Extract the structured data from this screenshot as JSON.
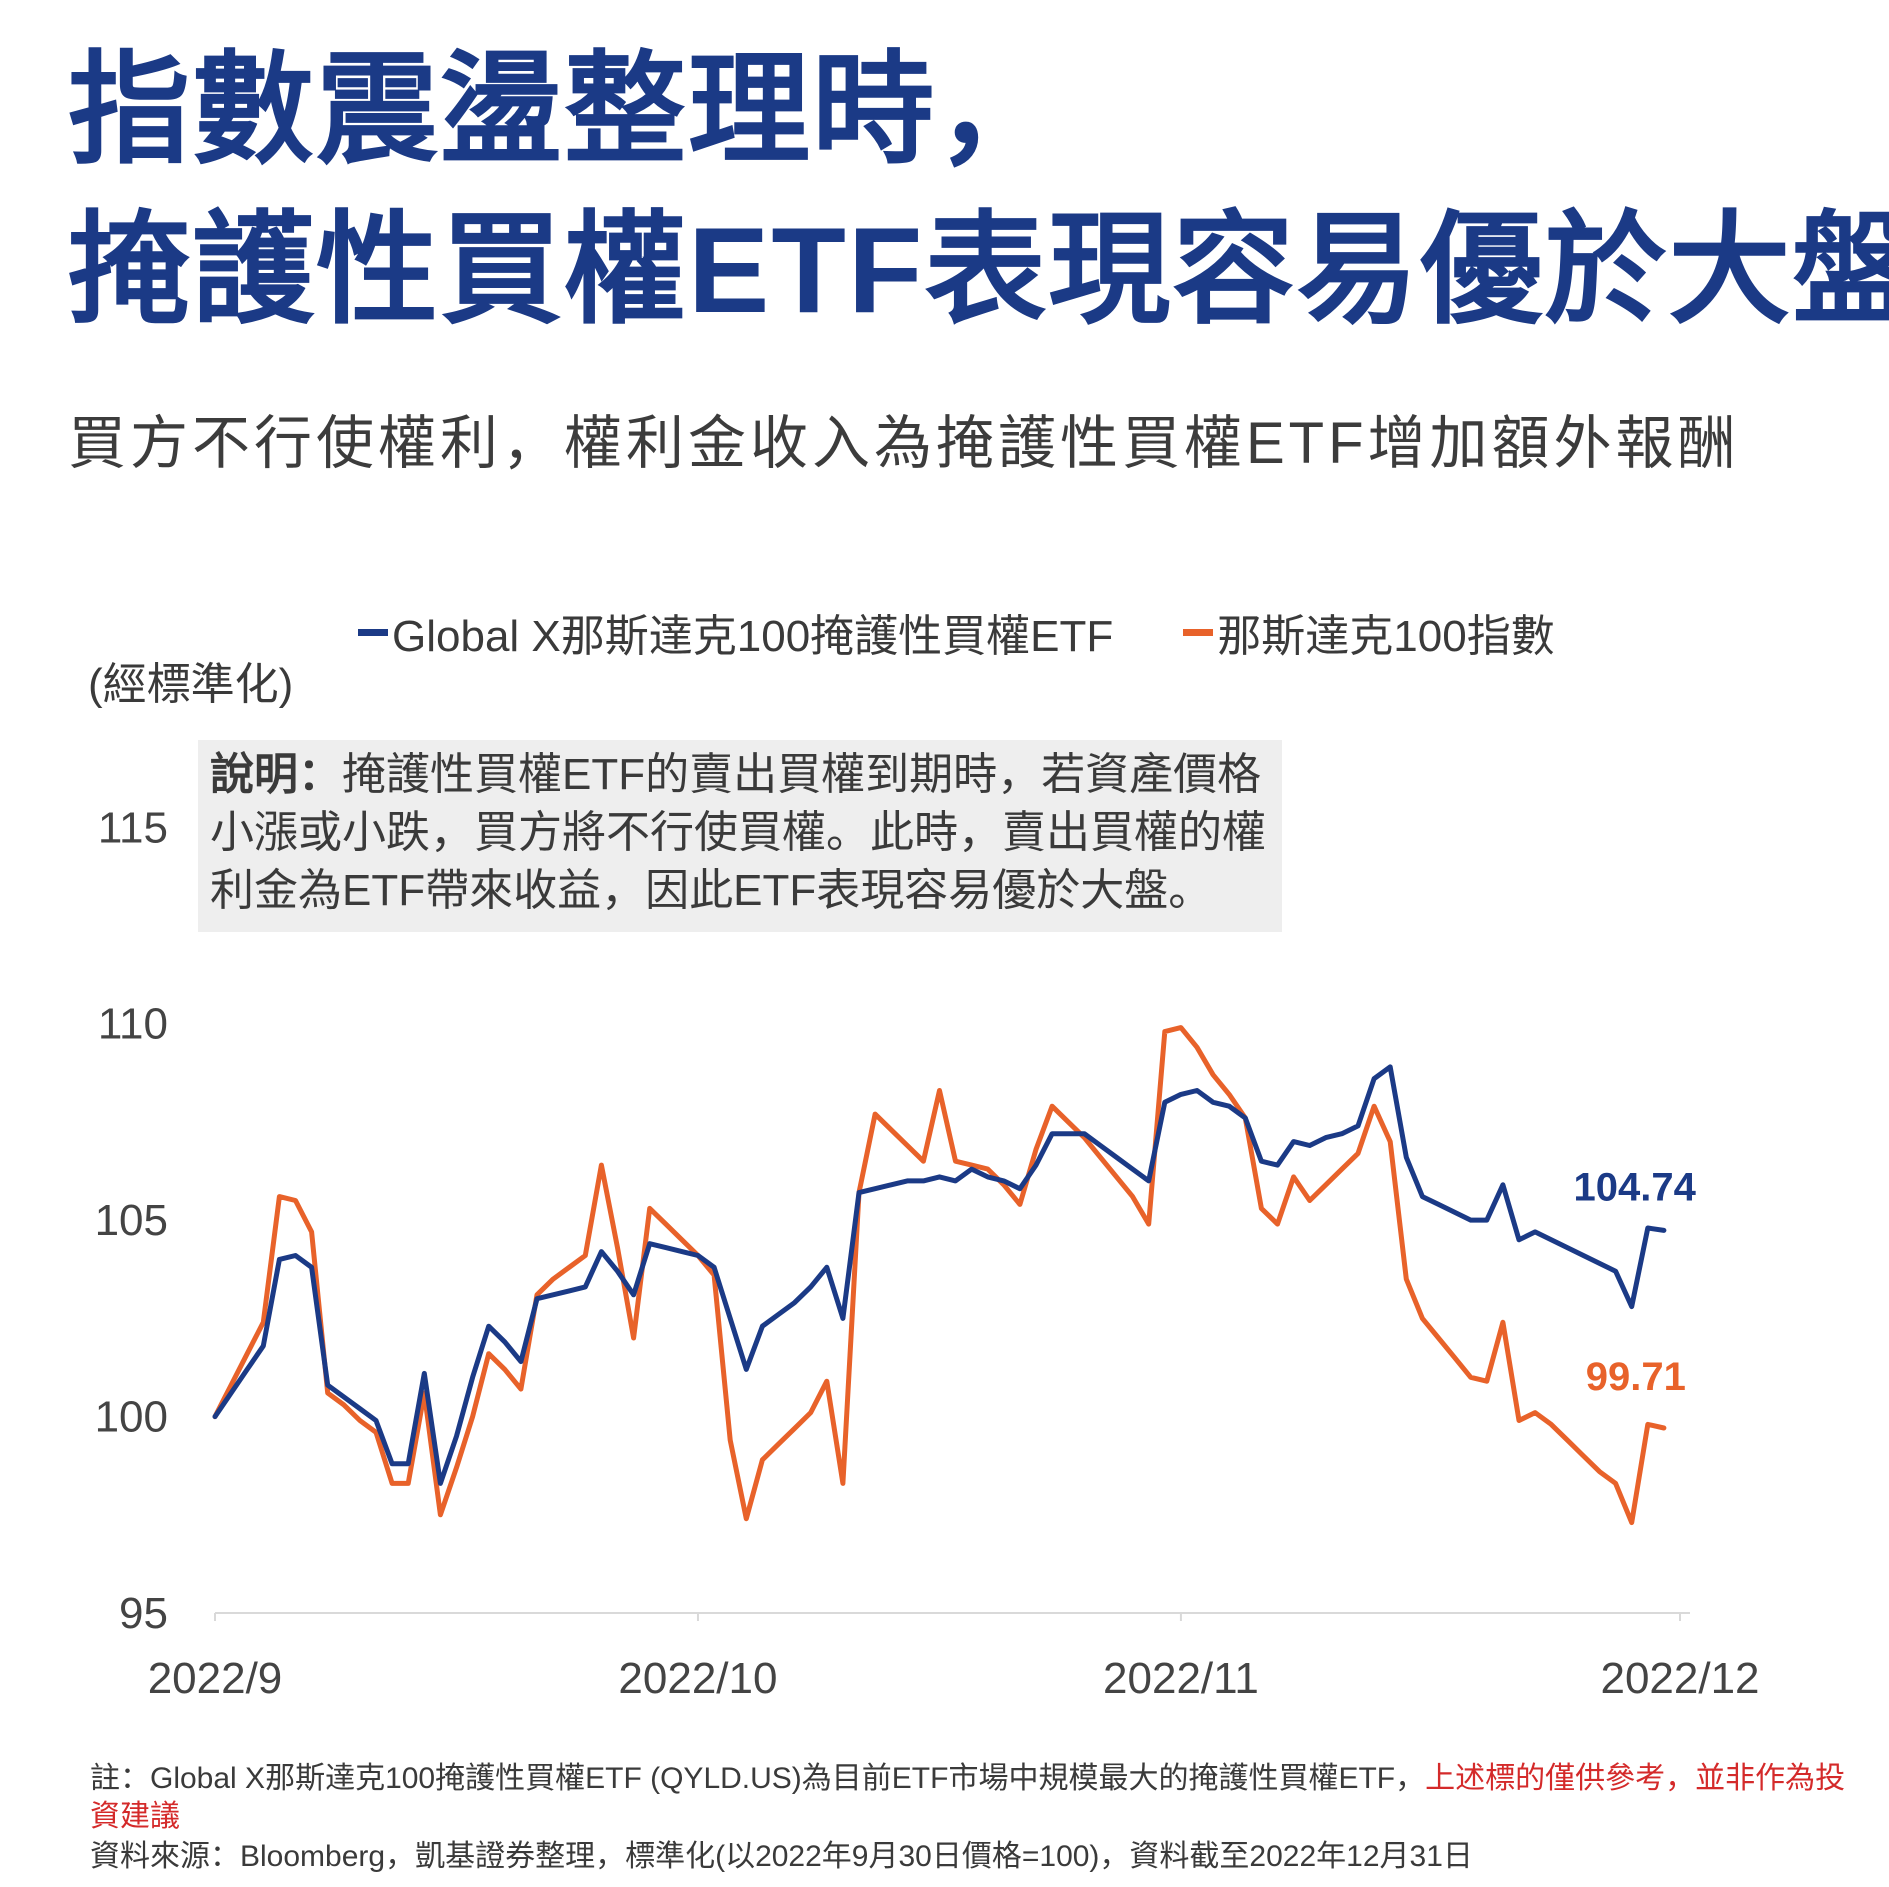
{
  "title": {
    "line1": "指數震盪整理時，",
    "line2": "掩護性買權ETF表現容易優於大盤"
  },
  "subtitle": "買方不行使權利，權利金收入為掩護性買權ETF增加額外報酬",
  "note": {
    "label": "說明：",
    "text": "掩護性買權ETF的賣出買權到期時，若資產價格小漲或小跌，買方將不行使買權。此時，賣出買權的權利金為ETF帶來收益，因此ETF表現容易優於大盤。"
  },
  "footer": {
    "note_prefix": "註：Global X那斯達克100掩護性買權ETF (QYLD.US)為目前ETF市場中規模最大的掩護性買權ETF，",
    "note_warning": "上述標的僅供參考，並非作為投資建議",
    "source": "資料來源：Bloomberg，凱基證券整理，標準化(以2022年9月30日價格=100)，資料截至2022年12月31日"
  },
  "colors": {
    "title": "#1b3a86",
    "series_etf": "#1b3a86",
    "series_index": "#e8622a",
    "warning": "#d42a2a"
  },
  "chart_data": {
    "type": "line",
    "ylabel": "(經標準化)",
    "ylim": [
      95,
      116
    ],
    "yticks": [
      95,
      100,
      105,
      110,
      115
    ],
    "xlim": [
      0,
      91
    ],
    "xticks": [
      {
        "label": "2022/9",
        "x": 0
      },
      {
        "label": "2022/10",
        "x": 30
      },
      {
        "label": "2022/11",
        "x": 60
      },
      {
        "label": "2022/12",
        "x": 91
      }
    ],
    "grid": false,
    "legend_position": "top",
    "series": [
      {
        "name": "Global X那斯達克100掩護性買權ETF",
        "end_label": "104.74",
        "points": [
          [
            0,
            100
          ],
          [
            1,
            100.6
          ],
          [
            2,
            101.2
          ],
          [
            3,
            101.8
          ],
          [
            4,
            104.0
          ],
          [
            5,
            104.1
          ],
          [
            6,
            103.8
          ],
          [
            7,
            100.8
          ],
          [
            8,
            100.5
          ],
          [
            9,
            100.2
          ],
          [
            10,
            99.9
          ],
          [
            11,
            98.8
          ],
          [
            12,
            98.8
          ],
          [
            13,
            101.1
          ],
          [
            14,
            98.3
          ],
          [
            15,
            99.5
          ],
          [
            16,
            101.0
          ],
          [
            17,
            102.3
          ],
          [
            18,
            101.9
          ],
          [
            19,
            101.4
          ],
          [
            20,
            103.0
          ],
          [
            21,
            103.1
          ],
          [
            22,
            103.2
          ],
          [
            23,
            103.3
          ],
          [
            24,
            104.2
          ],
          [
            25,
            103.7
          ],
          [
            26,
            103.1
          ],
          [
            27,
            104.4
          ],
          [
            28,
            104.3
          ],
          [
            29,
            104.2
          ],
          [
            30,
            104.1
          ],
          [
            31,
            103.8
          ],
          [
            32,
            102.5
          ],
          [
            33,
            101.2
          ],
          [
            34,
            102.3
          ],
          [
            35,
            102.6
          ],
          [
            36,
            102.9
          ],
          [
            37,
            103.3
          ],
          [
            38,
            103.8
          ],
          [
            39,
            102.5
          ],
          [
            40,
            105.7
          ],
          [
            41,
            105.8
          ],
          [
            42,
            105.9
          ],
          [
            43,
            106.0
          ],
          [
            44,
            106.0
          ],
          [
            45,
            106.1
          ],
          [
            46,
            106.0
          ],
          [
            47,
            106.3
          ],
          [
            48,
            106.1
          ],
          [
            49,
            106.0
          ],
          [
            50,
            105.8
          ],
          [
            51,
            106.4
          ],
          [
            52,
            107.2
          ],
          [
            53,
            107.2
          ],
          [
            54,
            107.2
          ],
          [
            55,
            106.9
          ],
          [
            56,
            106.6
          ],
          [
            57,
            106.3
          ],
          [
            58,
            106.0
          ],
          [
            59,
            108.0
          ],
          [
            60,
            108.2
          ],
          [
            61,
            108.3
          ],
          [
            62,
            108.0
          ],
          [
            63,
            107.9
          ],
          [
            64,
            107.6
          ],
          [
            65,
            106.5
          ],
          [
            66,
            106.4
          ],
          [
            67,
            107.0
          ],
          [
            68,
            106.9
          ],
          [
            69,
            107.1
          ],
          [
            70,
            107.2
          ],
          [
            71,
            107.4
          ],
          [
            72,
            108.6
          ],
          [
            73,
            108.9
          ],
          [
            74,
            106.6
          ],
          [
            75,
            105.6
          ],
          [
            76,
            105.4
          ],
          [
            77,
            105.2
          ],
          [
            78,
            105.0
          ],
          [
            79,
            105.0
          ],
          [
            80,
            105.9
          ],
          [
            81,
            104.5
          ],
          [
            82,
            104.7
          ],
          [
            83,
            104.5
          ],
          [
            84,
            104.3
          ],
          [
            85,
            104.1
          ],
          [
            86,
            103.9
          ],
          [
            87,
            103.7
          ],
          [
            88,
            102.8
          ],
          [
            89,
            104.8
          ],
          [
            90,
            104.74
          ]
        ]
      },
      {
        "name": "那斯達克100指數",
        "end_label": "99.71",
        "points": [
          [
            0,
            100
          ],
          [
            1,
            100.8
          ],
          [
            2,
            101.6
          ],
          [
            3,
            102.4
          ],
          [
            4,
            105.6
          ],
          [
            5,
            105.5
          ],
          [
            6,
            104.7
          ],
          [
            7,
            100.6
          ],
          [
            8,
            100.3
          ],
          [
            9,
            99.9
          ],
          [
            10,
            99.6
          ],
          [
            11,
            98.3
          ],
          [
            12,
            98.3
          ],
          [
            13,
            100.6
          ],
          [
            14,
            97.5
          ],
          [
            15,
            98.7
          ],
          [
            16,
            100.0
          ],
          [
            17,
            101.6
          ],
          [
            18,
            101.2
          ],
          [
            19,
            100.7
          ],
          [
            20,
            103.1
          ],
          [
            21,
            103.5
          ],
          [
            22,
            103.8
          ],
          [
            23,
            104.1
          ],
          [
            24,
            106.4
          ],
          [
            25,
            104.3
          ],
          [
            26,
            102.0
          ],
          [
            27,
            105.3
          ],
          [
            28,
            104.9
          ],
          [
            29,
            104.5
          ],
          [
            30,
            104.1
          ],
          [
            31,
            103.6
          ],
          [
            32,
            99.4
          ],
          [
            33,
            97.4
          ],
          [
            34,
            98.9
          ],
          [
            35,
            99.3
          ],
          [
            36,
            99.7
          ],
          [
            37,
            100.1
          ],
          [
            38,
            100.9
          ],
          [
            39,
            98.3
          ],
          [
            40,
            105.7
          ],
          [
            41,
            107.7
          ],
          [
            42,
            107.3
          ],
          [
            43,
            106.9
          ],
          [
            44,
            106.5
          ],
          [
            45,
            108.3
          ],
          [
            46,
            106.5
          ],
          [
            47,
            106.4
          ],
          [
            48,
            106.3
          ],
          [
            49,
            105.9
          ],
          [
            50,
            105.4
          ],
          [
            51,
            106.8
          ],
          [
            52,
            107.9
          ],
          [
            53,
            107.5
          ],
          [
            54,
            107.1
          ],
          [
            55,
            106.6
          ],
          [
            56,
            106.1
          ],
          [
            57,
            105.6
          ],
          [
            58,
            104.9
          ],
          [
            59,
            109.8
          ],
          [
            60,
            109.9
          ],
          [
            61,
            109.4
          ],
          [
            62,
            108.7
          ],
          [
            63,
            108.2
          ],
          [
            64,
            107.6
          ],
          [
            65,
            105.3
          ],
          [
            66,
            104.9
          ],
          [
            67,
            106.1
          ],
          [
            68,
            105.5
          ],
          [
            69,
            105.9
          ],
          [
            70,
            106.3
          ],
          [
            71,
            106.7
          ],
          [
            72,
            107.9
          ],
          [
            73,
            107.0
          ],
          [
            74,
            103.5
          ],
          [
            75,
            102.5
          ],
          [
            76,
            102.0
          ],
          [
            77,
            101.5
          ],
          [
            78,
            101.0
          ],
          [
            79,
            100.9
          ],
          [
            80,
            102.4
          ],
          [
            81,
            99.9
          ],
          [
            82,
            100.1
          ],
          [
            83,
            99.8
          ],
          [
            84,
            99.4
          ],
          [
            85,
            99.0
          ],
          [
            86,
            98.6
          ],
          [
            87,
            98.3
          ],
          [
            88,
            97.3
          ],
          [
            89,
            99.8
          ],
          [
            90,
            99.71
          ]
        ]
      }
    ]
  }
}
